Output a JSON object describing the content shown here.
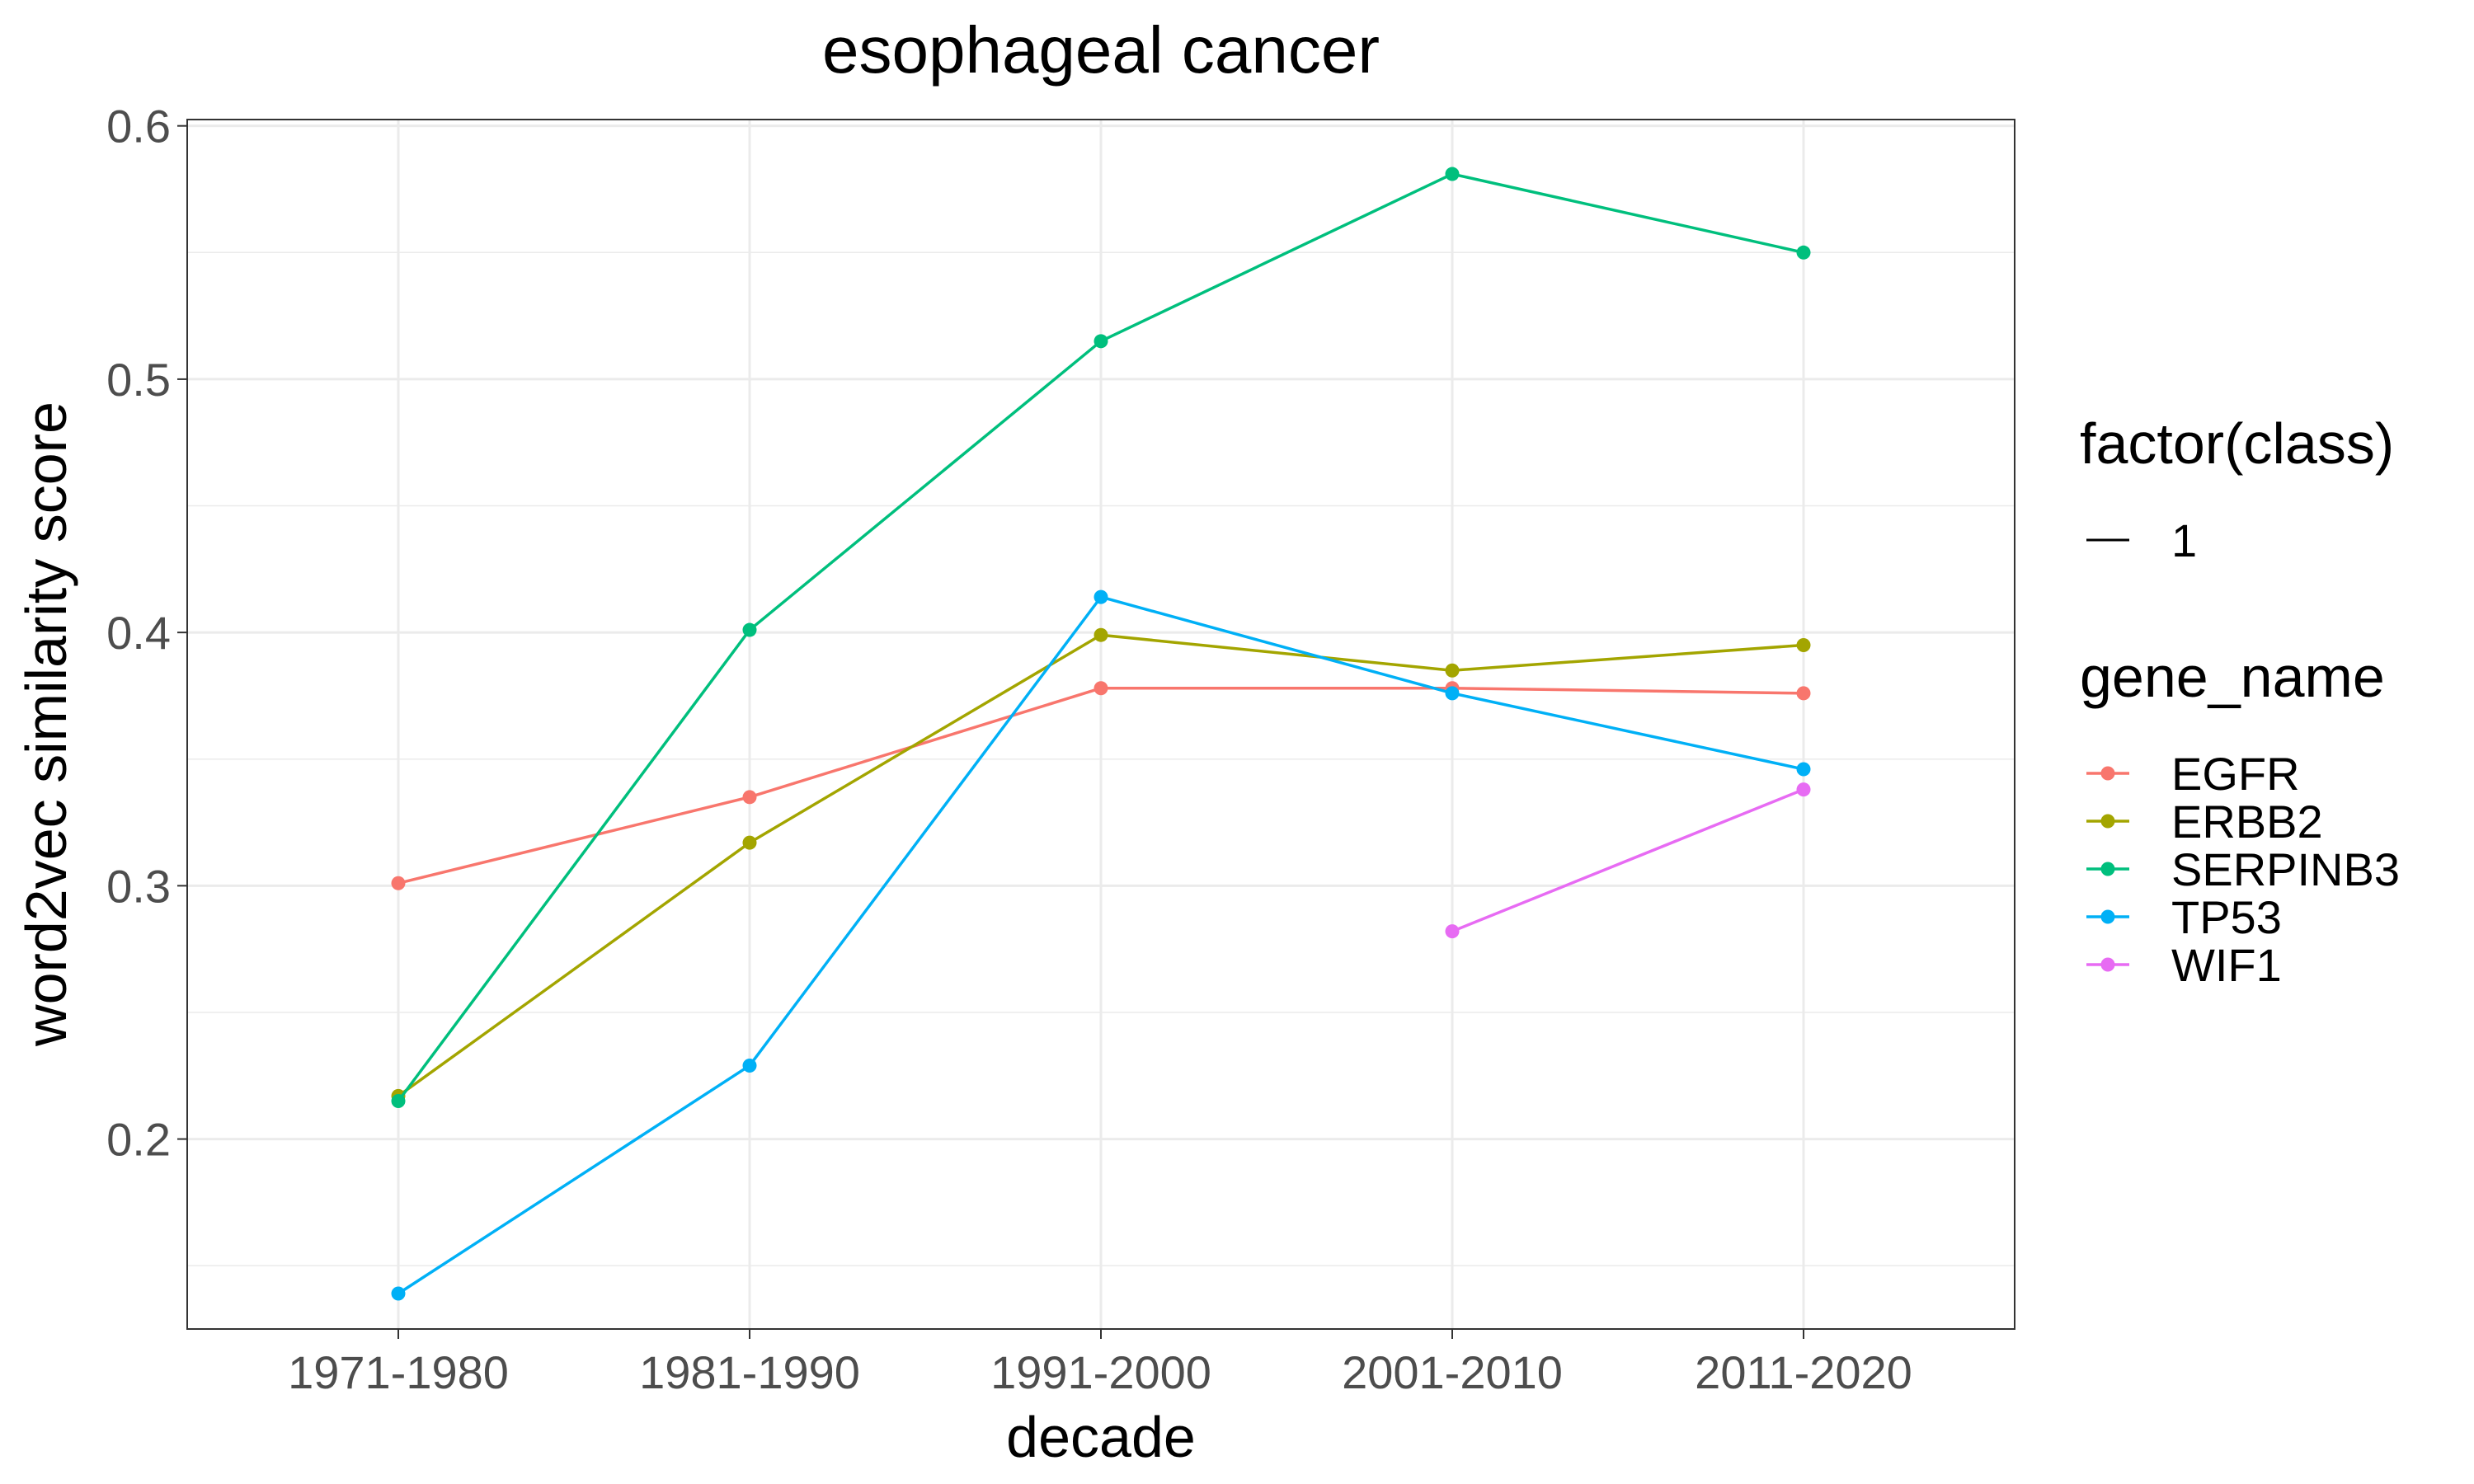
{
  "chart_data": {
    "type": "line",
    "title": "esophageal cancer",
    "xlabel": "decade",
    "ylabel": "word2vec similarity score",
    "categories": [
      "1971-1980",
      "1981-1990",
      "1991-2000",
      "2001-2010",
      "2011-2020"
    ],
    "ylim": [
      0.125,
      0.6025
    ],
    "yticks": [
      0.2,
      0.3,
      0.4,
      0.5,
      0.6
    ],
    "ytick_labels": [
      "0.2",
      "0.3",
      "0.4",
      "0.5",
      "0.6"
    ],
    "grid": true,
    "legend_position": "right",
    "legends": [
      {
        "title": "factor(class)",
        "entries": [
          {
            "label": "1",
            "kind": "line",
            "color": "#000000"
          }
        ]
      },
      {
        "title": "gene_name",
        "entries": [
          {
            "label": "EGFR",
            "kind": "point-line",
            "color": "#F8766D"
          },
          {
            "label": "ERBB2",
            "kind": "point-line",
            "color": "#A3A500"
          },
          {
            "label": "SERPINB3",
            "kind": "point-line",
            "color": "#00BF7D"
          },
          {
            "label": "TP53",
            "kind": "point-line",
            "color": "#00B0F6"
          },
          {
            "label": "WIF1",
            "kind": "point-line",
            "color": "#E76BF3"
          }
        ]
      }
    ],
    "series": [
      {
        "name": "EGFR",
        "color": "#F8766D",
        "values": [
          0.301,
          0.335,
          0.378,
          0.378,
          0.376
        ]
      },
      {
        "name": "ERBB2",
        "color": "#A3A500",
        "values": [
          0.217,
          0.317,
          0.399,
          0.385,
          0.395
        ]
      },
      {
        "name": "SERPINB3",
        "color": "#00BF7D",
        "values": [
          0.215,
          0.401,
          0.515,
          0.581,
          0.55
        ]
      },
      {
        "name": "TP53",
        "color": "#00B0F6",
        "values": [
          0.139,
          0.229,
          0.414,
          0.376,
          0.346
        ]
      },
      {
        "name": "WIF1",
        "color": "#E76BF3",
        "values": [
          null,
          null,
          null,
          0.282,
          0.338
        ]
      }
    ]
  }
}
